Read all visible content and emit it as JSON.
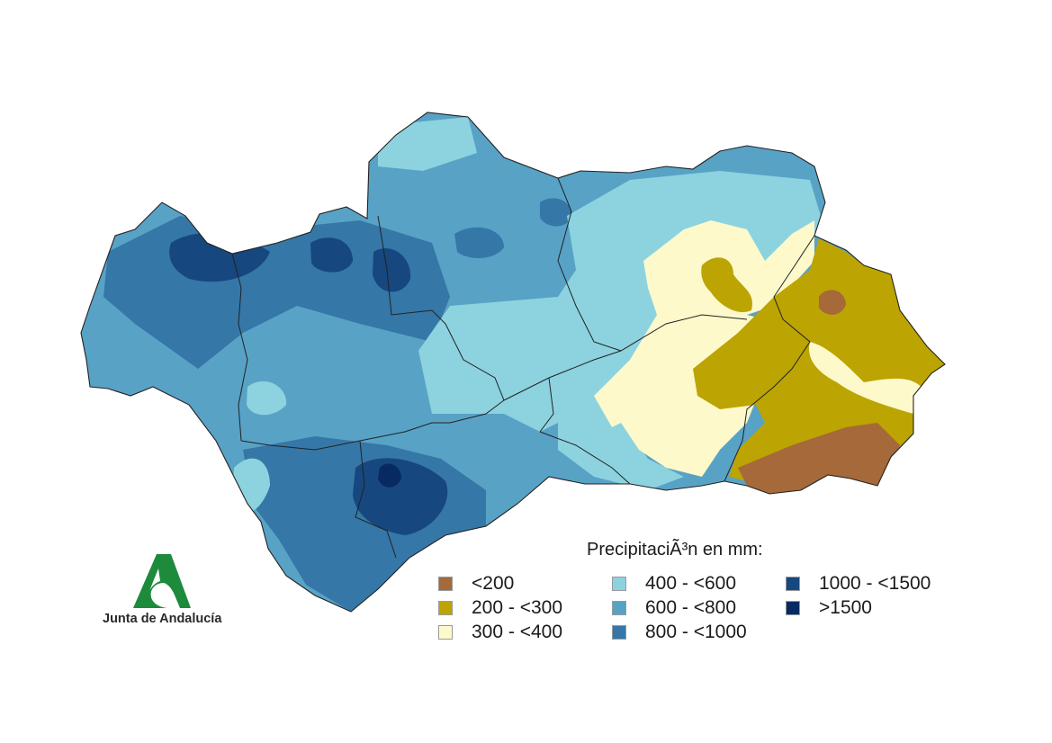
{
  "legend": {
    "title": "PrecipitaciÃ³n en mm:",
    "items": [
      {
        "label": "<200",
        "color": "#a5693a"
      },
      {
        "label": "200 - <300",
        "color": "#bca402"
      },
      {
        "label": "300 - <400",
        "color": "#fdf9cb"
      },
      {
        "label": "400 - <600",
        "color": "#8cd3df"
      },
      {
        "label": "600 - <800",
        "color": "#58a2c6"
      },
      {
        "label": "800 - <1000",
        "color": "#3577a7"
      },
      {
        "label": "1000 - <1500",
        "color": "#16477f"
      },
      {
        "label": ">1500",
        "color": "#062a61"
      }
    ]
  },
  "logo": {
    "text": "Junta de Andalucía",
    "color": "#1d8a3c"
  }
}
